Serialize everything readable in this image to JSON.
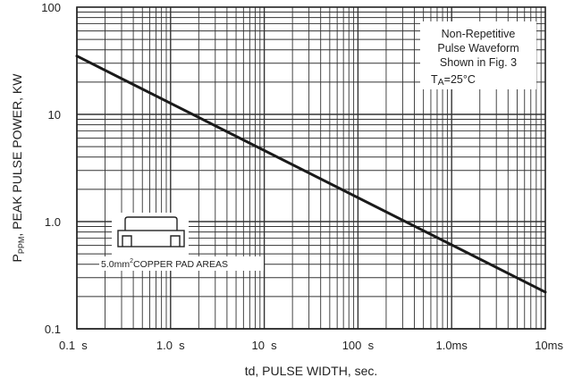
{
  "chart_data": {
    "type": "line",
    "xscale": "log",
    "yscale": "log",
    "grid": true,
    "xlabel": "td, PULSE WIDTH, sec.",
    "ylabel_main": "P",
    "ylabel_sub": "PPM",
    "ylabel_rest": ", PEAK PULSE POWER, KW",
    "x_ticks": [
      {
        "value": 0.1,
        "label": "0.1  s"
      },
      {
        "value": 1,
        "label": "1.0  s"
      },
      {
        "value": 10,
        "label": "10  s"
      },
      {
        "value": 100,
        "label": "100  s"
      },
      {
        "value": 1000,
        "label": "1.0ms"
      },
      {
        "value": 10000,
        "label": "10ms"
      }
    ],
    "y_ticks": [
      {
        "value": 0.1,
        "label": "0.1"
      },
      {
        "value": 1,
        "label": "1.0"
      },
      {
        "value": 10,
        "label": "10"
      },
      {
        "value": 100,
        "label": "100"
      }
    ],
    "xlim": [
      0.1,
      10000
    ],
    "ylim": [
      0.1,
      100
    ],
    "series": [
      {
        "x": [
          0.1,
          10000
        ],
        "y": [
          35,
          0.22
        ]
      }
    ],
    "annotation": {
      "lines": [
        "Non-Repetitive",
        "Pulse Waveform",
        "Shown in Fig. 3"
      ],
      "temp_main": "T",
      "temp_sub": "A",
      "temp_rest": "=25°C"
    },
    "pad_label": {
      "prefix": "5.0mm",
      "sup": "2",
      "suffix": "COPPER PAD AREAS"
    }
  }
}
